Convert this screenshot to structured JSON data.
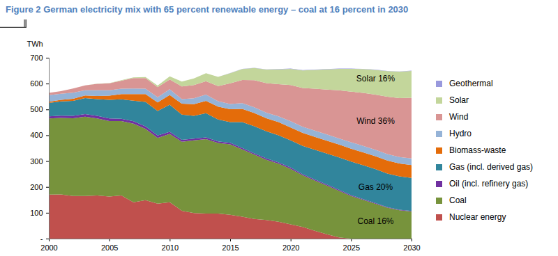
{
  "chart_data": {
    "type": "area",
    "title": "Figure 2 German electricity mix with 65 percent renewable energy – coal at 16 percent in 2030",
    "ylabel": "TWh",
    "stacked": true,
    "grid": false,
    "legend": "right",
    "x": [
      2000,
      2001,
      2002,
      2003,
      2004,
      2005,
      2006,
      2007,
      2008,
      2009,
      2010,
      2011,
      2012,
      2013,
      2014,
      2015,
      2016,
      2017,
      2018,
      2019,
      2020,
      2021,
      2022,
      2023,
      2024,
      2025,
      2026,
      2027,
      2028,
      2029,
      2030
    ],
    "xlim": [
      2000,
      2030
    ],
    "xticks": [
      2000,
      2005,
      2010,
      2015,
      2020,
      2025,
      2030
    ],
    "ylim": [
      0,
      700
    ],
    "yticks": [
      {
        "value": 0,
        "label": "-"
      },
      100,
      200,
      300,
      400,
      500,
      600,
      700
    ],
    "series": [
      {
        "name": "Nuclear energy",
        "color": "#c0504d",
        "values": [
          170,
          171,
          165,
          165,
          167,
          163,
          167,
          141,
          149,
          135,
          141,
          108,
          99,
          97,
          97,
          92,
          85,
          76,
          72,
          65,
          55,
          45,
          30,
          17,
          5,
          0,
          0,
          0,
          0,
          0,
          0
        ]
      },
      {
        "name": "Coal",
        "color": "#77933c",
        "values": [
          295,
          296,
          301,
          307,
          298,
          292,
          288,
          304,
          276,
          255,
          264,
          267,
          281,
          288,
          273,
          273,
          260,
          249,
          233,
          225,
          215,
          200,
          195,
          188,
          180,
          165,
          150,
          135,
          120,
          110,
          105
        ]
      },
      {
        "name": "Oil (incl. refinery gas)",
        "color": "#7030a0",
        "values": [
          8,
          9,
          9,
          10,
          10,
          10,
          9,
          9,
          9,
          9,
          8,
          7,
          7,
          7,
          6,
          6,
          6,
          5,
          5,
          5,
          5,
          4,
          4,
          4,
          4,
          3,
          3,
          3,
          2,
          2,
          2
        ]
      },
      {
        "name": "Gas (incl. derived gas)",
        "color": "#31859c",
        "values": [
          52,
          55,
          58,
          62,
          65,
          72,
          75,
          80,
          95,
          95,
          105,
          98,
          88,
          93,
          85,
          80,
          100,
          105,
          105,
          105,
          105,
          110,
          115,
          120,
          125,
          130,
          131,
          131,
          130,
          129,
          128
        ]
      },
      {
        "name": "Biomass-waste",
        "color": "#e46c0a",
        "values": [
          5,
          6,
          8,
          10,
          12,
          16,
          20,
          25,
          30,
          33,
          38,
          42,
          45,
          48,
          50,
          50,
          51,
          51,
          51,
          51,
          50,
          50,
          50,
          50,
          50,
          50,
          50,
          50,
          50,
          50,
          50
        ]
      },
      {
        "name": "Hydro",
        "color": "#95b3d7",
        "values": [
          25,
          24,
          24,
          20,
          22,
          21,
          21,
          22,
          21,
          20,
          22,
          18,
          23,
          24,
          21,
          20,
          22,
          22,
          21,
          22,
          24,
          24,
          24,
          24,
          24,
          25,
          25,
          25,
          25,
          25,
          25
        ]
      },
      {
        "name": "Wind",
        "color": "#d99594",
        "values": [
          9,
          10,
          16,
          19,
          25,
          27,
          31,
          40,
          41,
          39,
          38,
          49,
          51,
          52,
          58,
          80,
          90,
          105,
          115,
          125,
          140,
          150,
          162,
          174,
          186,
          196,
          205,
          213,
          222,
          228,
          235
        ]
      },
      {
        "name": "Solar",
        "color": "#c3d69b",
        "values": [
          0,
          0,
          0,
          0,
          1,
          1,
          2,
          3,
          4,
          6,
          12,
          19,
          26,
          31,
          36,
          39,
          42,
          47,
          52,
          57,
          63,
          68,
          73,
          78,
          83,
          88,
          92,
          96,
          99,
          102,
          104
        ]
      },
      {
        "name": "Geothermal",
        "color": "#9999dd",
        "values": [
          0,
          0,
          0,
          0,
          0,
          0,
          0,
          0,
          0,
          0,
          0,
          0,
          0,
          0,
          0,
          1,
          1,
          1,
          1,
          1,
          1,
          1,
          1,
          1,
          1,
          1,
          1,
          1,
          1,
          1,
          1
        ]
      }
    ],
    "annotations": [
      {
        "text": "Solar 16%",
        "x": 2027,
        "y": 621
      },
      {
        "text": "Wind 36%",
        "x": 2027,
        "y": 457
      },
      {
        "text": "Gas 20%",
        "x": 2027,
        "y": 199
      },
      {
        "text": "Coal 16%",
        "x": 2027,
        "y": 69
      }
    ]
  }
}
